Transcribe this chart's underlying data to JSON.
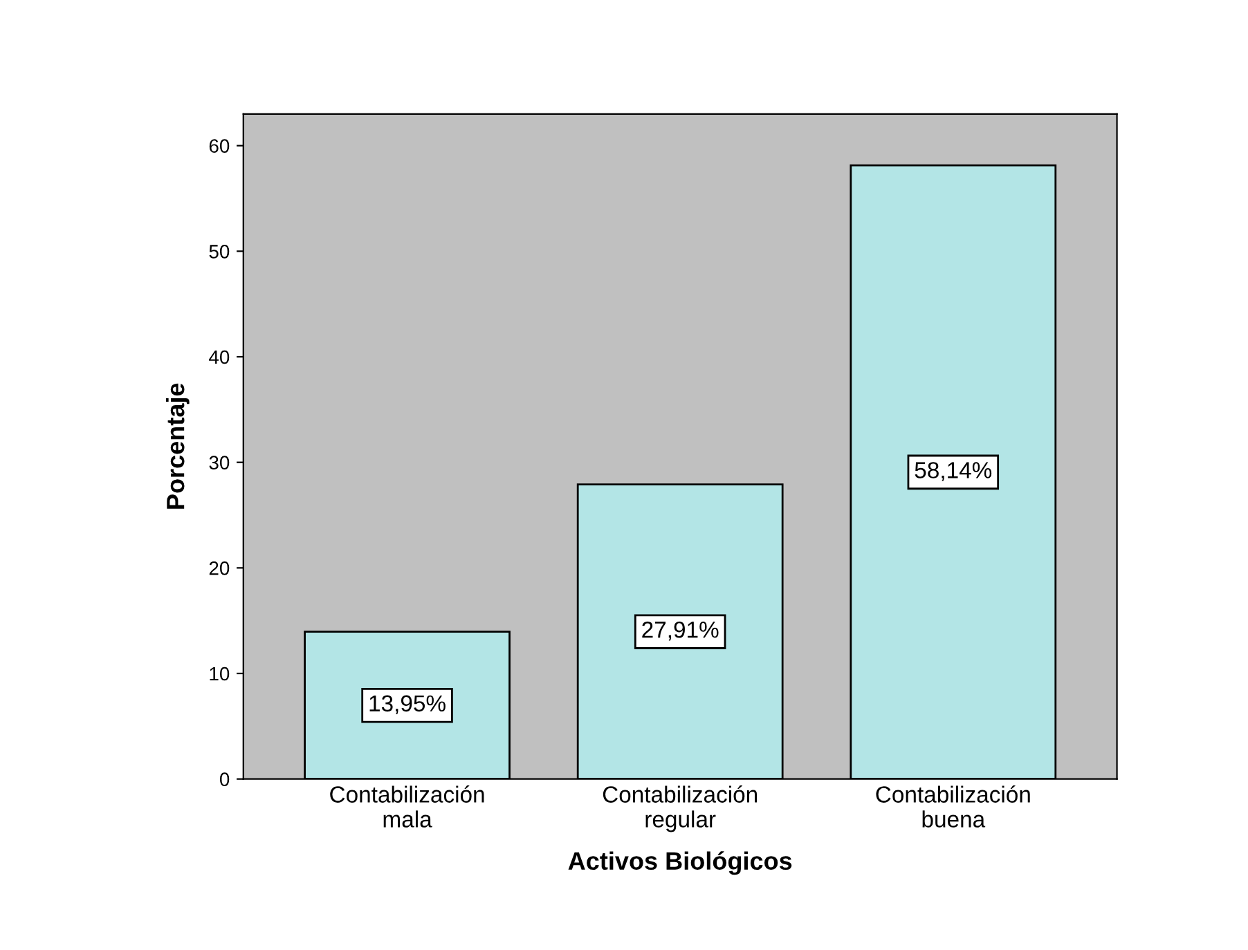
{
  "chart_data": {
    "type": "bar",
    "xlabel": "Activos Biológicos",
    "ylabel": "Porcentaje",
    "categories": [
      "Contabilización\nmala",
      "Contabilización\nregular",
      "Contabilización\nbuena"
    ],
    "values": [
      13.95,
      27.91,
      58.14
    ],
    "value_labels": [
      "13,95%",
      "27,91%",
      "58,14%"
    ],
    "color": "#b3e5e6",
    "ylim": [
      0,
      63
    ],
    "yticks": [
      0,
      10,
      20,
      30,
      40,
      50,
      60
    ],
    "grid": false
  }
}
